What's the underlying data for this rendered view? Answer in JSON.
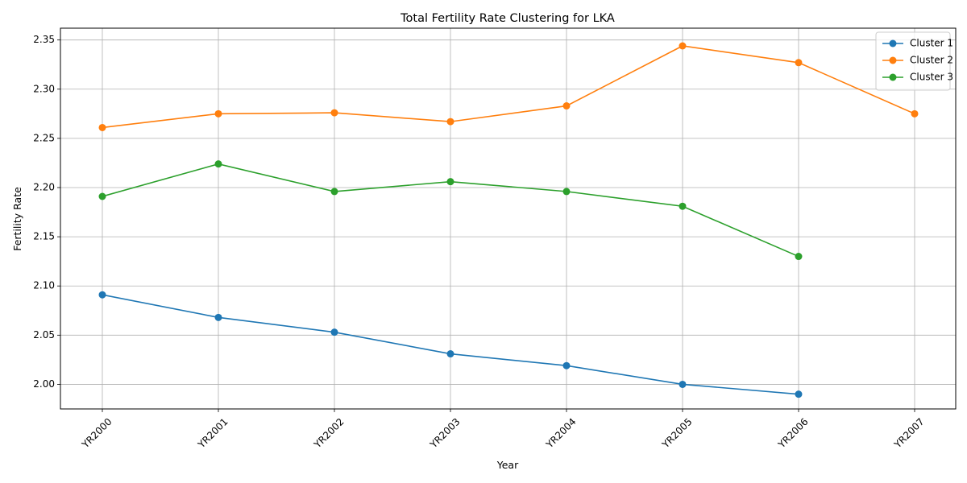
{
  "chart_data": {
    "type": "line",
    "title": "Total Fertility Rate Clustering for LKA",
    "xlabel": "Year",
    "ylabel": "Fertility Rate",
    "categories": [
      "YR2000",
      "YR2001",
      "YR2002",
      "YR2003",
      "YR2004",
      "YR2005",
      "YR2006",
      "YR2007"
    ],
    "ylim": [
      1.975,
      2.362
    ],
    "yticks": [
      2.0,
      2.05,
      2.1,
      2.15,
      2.2,
      2.25,
      2.3,
      2.35
    ],
    "ytick_labels": [
      "2.00",
      "2.05",
      "2.10",
      "2.15",
      "2.20",
      "2.25",
      "2.30",
      "2.35"
    ],
    "grid": true,
    "legend_position": "top-right",
    "xtick_rotation_deg": 45,
    "series": [
      {
        "name": "Cluster 1",
        "color": "#1f77b4",
        "values": [
          2.091,
          2.068,
          2.053,
          2.031,
          2.019,
          2.0,
          1.99,
          null
        ]
      },
      {
        "name": "Cluster 2",
        "color": "#ff7f0e",
        "values": [
          2.261,
          2.275,
          2.276,
          2.267,
          2.283,
          2.344,
          2.327,
          2.275
        ]
      },
      {
        "name": "Cluster 3",
        "color": "#2ca02c",
        "values": [
          2.191,
          2.224,
          2.196,
          2.206,
          2.196,
          2.181,
          2.13,
          null
        ]
      }
    ]
  }
}
